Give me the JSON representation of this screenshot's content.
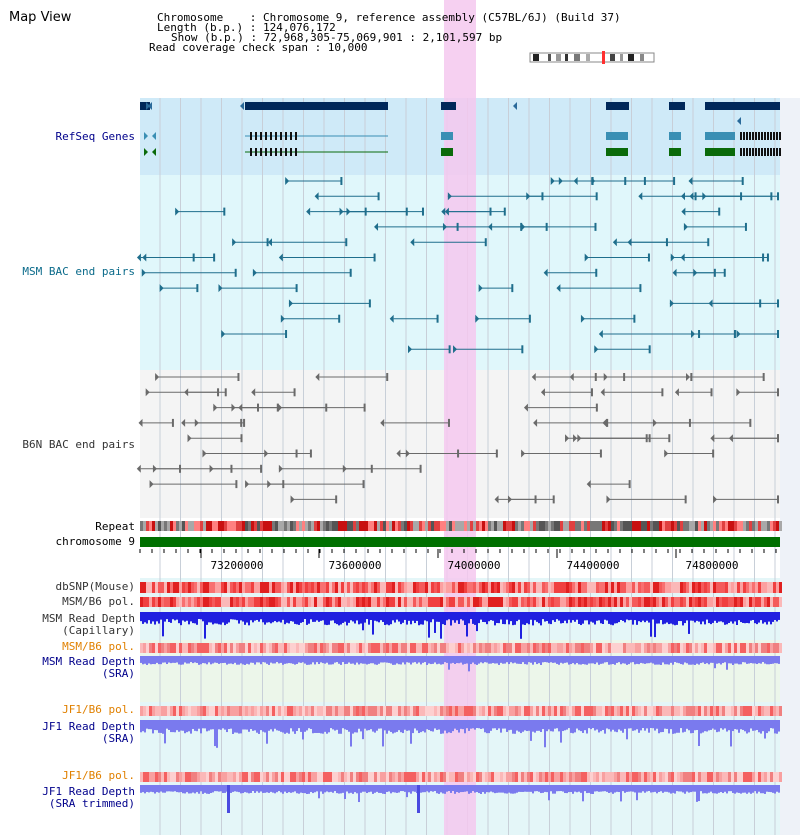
{
  "header": {
    "title": "Map View",
    "info_lines": [
      "Chromosome    : Chromosome 9, reference assembly (C57BL/6J) (Build 37)",
      "Length (b.p.) : 124,076,172",
      "Show (b.p.) : 72,968,305-75,069,901 : 2,101,597 bp",
      "Read coverage check span : 10,000"
    ]
  },
  "tracks": {
    "refseq": "RefSeq Genes",
    "msm_bac": "MSM BAC end pairs",
    "b6n_bac": "B6N BAC end pairs",
    "repeat": "Repeat",
    "chromosome": "chromosome 9",
    "dbsnp": "dbSNP(Mouse)",
    "msm_b6_pol_1": "MSM/B6 pol.",
    "msm_read_depth_cap": "MSM Read Depth\n(Capillary)",
    "msm_b6_pol_2": "MSM/B6 pol.",
    "msm_read_depth_sra": "MSM Read Depth\n(SRA)",
    "jf1_b6_pol_1": "JF1/B6 pol.",
    "jf1_read_depth_sra": "JF1 Read Depth\n(SRA)",
    "jf1_b6_pol_2": "JF1/B6 pol.",
    "jf1_read_depth_trim": "JF1 Read Depth\n(SRA trimmed)"
  },
  "axis": {
    "tick_labels": [
      "73200000",
      "73600000",
      "74000000",
      "74400000",
      "74800000"
    ]
  },
  "colors": {
    "highlight": "#f5c8ee",
    "refseq_bg": "#cfeaf8",
    "msm_bg": "#e0f7fb",
    "b6n_bg": "#f4f4f4",
    "gene_dark": "#00285a",
    "gene_teal": "#3a8fb4",
    "gene_green": "#0a6a0a",
    "msm_line": "#1f6e8c",
    "b6n_line": "#6a6a6a",
    "chromosome": "#007000",
    "read_depth_cap": "#2020e0",
    "read_depth_sra": "#7a7aee",
    "label_blue": "#00008b",
    "label_teal": "#0a6a8a",
    "label_orange": "#e08000"
  }
}
